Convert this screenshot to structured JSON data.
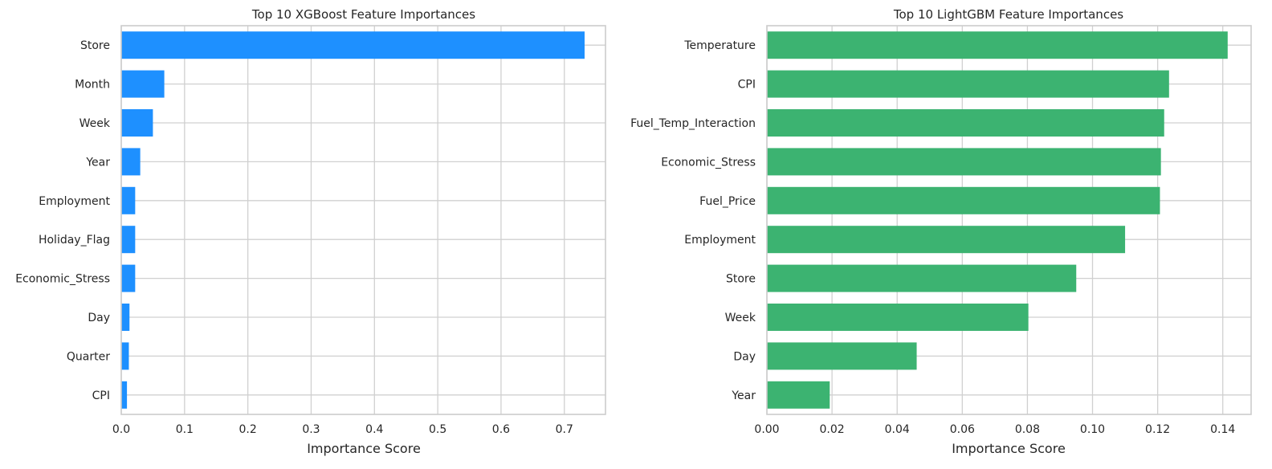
{
  "chart_data": [
    {
      "type": "bar",
      "orientation": "horizontal",
      "title": "Top 10 XGBoost Feature Importances",
      "xlabel": "Importance Score",
      "ylabel": "",
      "categories": [
        "Store",
        "Month",
        "Week",
        "Year",
        "Employment",
        "Holiday_Flag",
        "Economic_Stress",
        "Day",
        "Quarter",
        "CPI"
      ],
      "values": [
        0.732,
        0.068,
        0.05,
        0.03,
        0.022,
        0.022,
        0.022,
        0.013,
        0.012,
        0.009
      ],
      "xlim": [
        0,
        0.765
      ],
      "xticks": [
        0.0,
        0.1,
        0.2,
        0.3,
        0.4,
        0.5,
        0.6,
        0.7
      ],
      "xtick_labels": [
        "0.0",
        "0.1",
        "0.2",
        "0.3",
        "0.4",
        "0.5",
        "0.6",
        "0.7"
      ],
      "color": "#1e90ff",
      "grid": true
    },
    {
      "type": "bar",
      "orientation": "horizontal",
      "title": "Top 10 LightGBM Feature Importances",
      "xlabel": "Importance Score",
      "ylabel": "",
      "categories": [
        "Temperature",
        "CPI",
        "Fuel_Temp_Interaction",
        "Economic_Stress",
        "Fuel_Price",
        "Employment",
        "Store",
        "Week",
        "Day",
        "Year"
      ],
      "values": [
        0.1415,
        0.1235,
        0.122,
        0.121,
        0.1207,
        0.11,
        0.095,
        0.0803,
        0.046,
        0.0193
      ],
      "xlim": [
        0,
        0.1487
      ],
      "xticks": [
        0.0,
        0.02,
        0.04,
        0.06,
        0.08,
        0.1,
        0.12,
        0.14
      ],
      "xtick_labels": [
        "0.00",
        "0.02",
        "0.04",
        "0.06",
        "0.08",
        "0.10",
        "0.12",
        "0.14"
      ],
      "color": "#3cb371",
      "grid": true
    }
  ]
}
